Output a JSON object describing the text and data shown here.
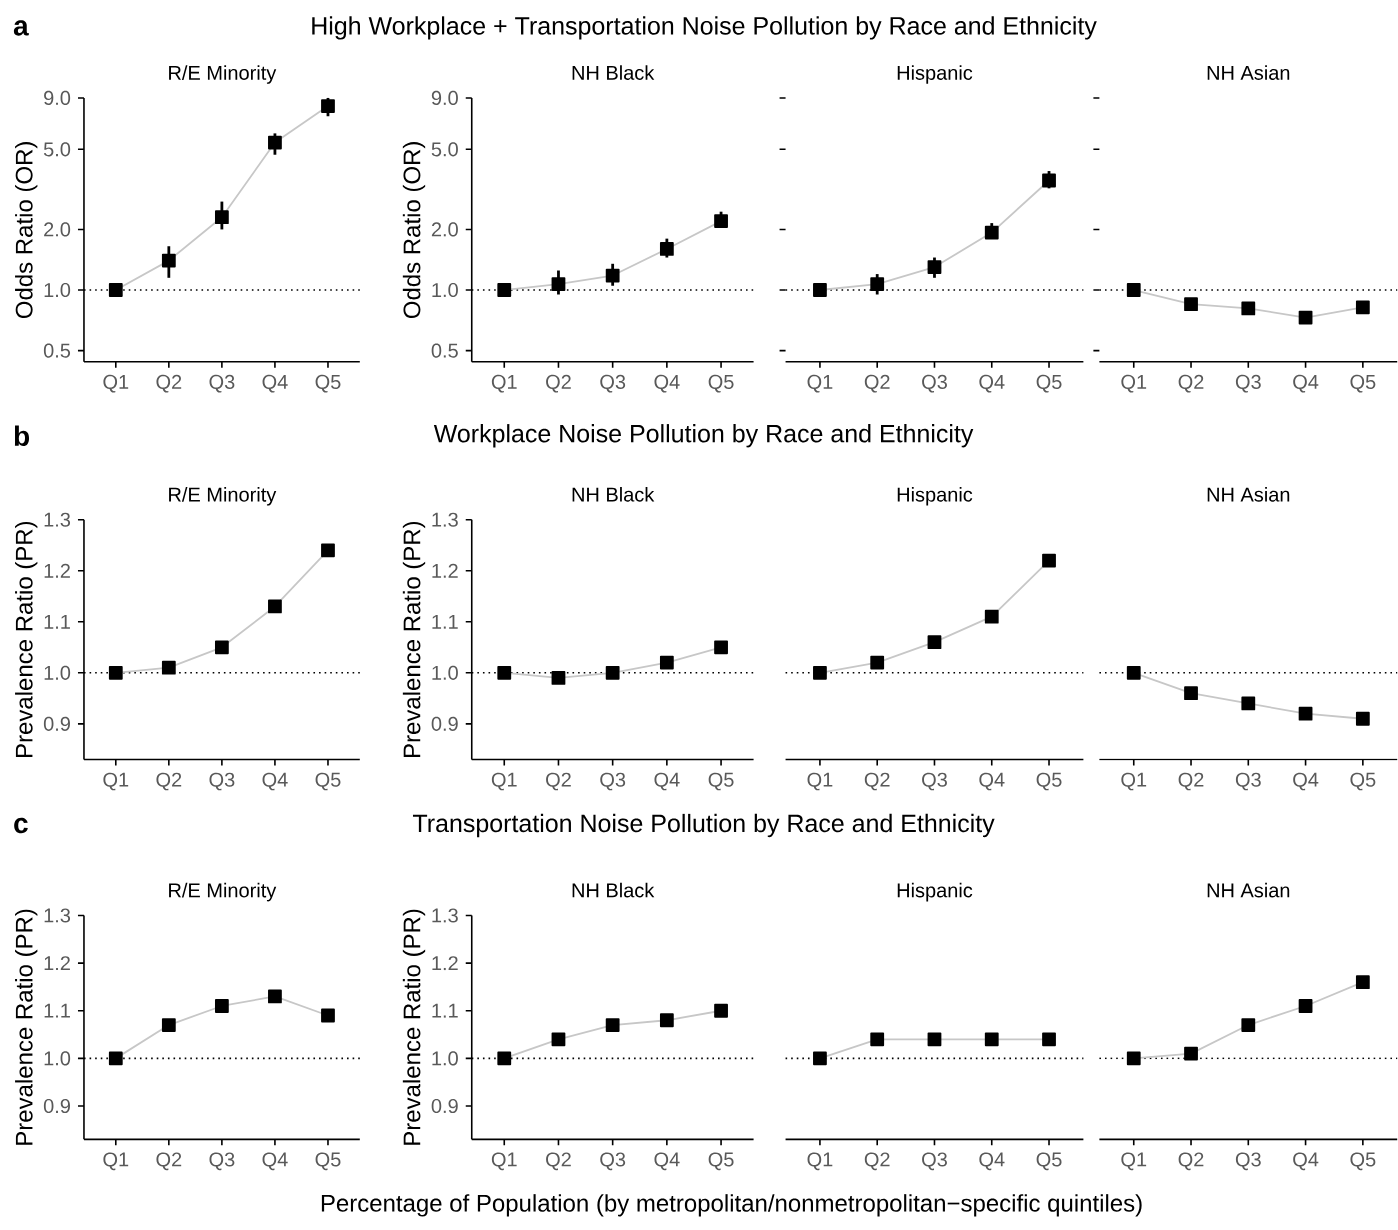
{
  "chart_data": [
    {
      "type": "line",
      "title": "R/E Minority",
      "ylabel": "Odds Ratio (OR)",
      "annotations": [
        "a",
        "High Workplace + Transportation Noise Pollution by Race and Ethnicity"
      ],
      "categories": [
        "Q1",
        "Q2",
        "Q3",
        "Q4",
        "Q5"
      ],
      "values": [
        1.0,
        1.4,
        2.3,
        5.4,
        8.2
      ],
      "errors": [
        null,
        [
          1.15,
          1.65
        ],
        [
          2.0,
          2.75
        ],
        [
          4.7,
          6.0
        ],
        [
          7.3,
          9.0
        ]
      ],
      "color": "#000000",
      "marker": "square",
      "line_style": "solid",
      "log": "y",
      "ylim": [
        0.44,
        9.0
      ],
      "yticks": [
        {
          "value": 0.5,
          "label": "0.5"
        },
        {
          "value": 1,
          "label": "1.0"
        },
        {
          "value": 2,
          "label": "2.0"
        },
        {
          "value": 5,
          "label": "5.0"
        },
        {
          "value": 9,
          "label": "9.0"
        }
      ],
      "ref_lines": [
        {
          "axis": "y",
          "value": 1,
          "line_style": "dotted"
        }
      ]
    },
    {
      "type": "line",
      "title": "NH Black",
      "ylabel": "Odds Ratio (OR)",
      "categories": [
        "Q1",
        "Q2",
        "Q3",
        "Q4",
        "Q5"
      ],
      "values": [
        1.0,
        1.07,
        1.18,
        1.6,
        2.2
      ],
      "errors": [
        null,
        [
          0.95,
          1.25
        ],
        [
          1.05,
          1.35
        ],
        [
          1.45,
          1.8
        ],
        [
          2.05,
          2.45
        ]
      ],
      "color": "#000000",
      "marker": "square",
      "line_style": "solid",
      "log": "y",
      "ylim": [
        0.44,
        9.0
      ],
      "yticks": [
        {
          "value": 0.5,
          "label": "0.5"
        },
        {
          "value": 1,
          "label": "1.0"
        },
        {
          "value": 2,
          "label": "2.0"
        },
        {
          "value": 5,
          "label": "5.0"
        },
        {
          "value": 9,
          "label": "9.0"
        }
      ],
      "ref_lines": [
        {
          "axis": "y",
          "value": 1,
          "line_style": "dotted"
        }
      ]
    },
    {
      "type": "line",
      "title": "Hispanic",
      "categories": [
        "Q1",
        "Q2",
        "Q3",
        "Q4",
        "Q5"
      ],
      "values": [
        1.0,
        1.07,
        1.3,
        1.93,
        3.5
      ],
      "errors": [
        null,
        [
          0.95,
          1.2
        ],
        [
          1.15,
          1.45
        ],
        [
          1.8,
          2.15
        ],
        [
          3.2,
          3.9
        ]
      ],
      "color": "#000000",
      "marker": "square",
      "line_style": "solid",
      "log": "y",
      "ylim": [
        0.44,
        9.0
      ],
      "yticks": [
        {
          "value": 0.5,
          "label": null
        },
        {
          "value": 1,
          "label": null
        },
        {
          "value": 2,
          "label": null
        },
        {
          "value": 5,
          "label": null
        },
        {
          "value": 9,
          "label": null
        }
      ],
      "tick_labels": "x",
      "ref_lines": [
        {
          "axis": "y",
          "value": 1,
          "line_style": "dotted"
        }
      ]
    },
    {
      "type": "line",
      "title": "NH Asian",
      "categories": [
        "Q1",
        "Q2",
        "Q3",
        "Q4",
        "Q5"
      ],
      "values": [
        1.0,
        0.85,
        0.81,
        0.73,
        0.82
      ],
      "errors": [
        null,
        [
          0.81,
          0.89
        ],
        [
          0.77,
          0.86
        ],
        [
          0.69,
          0.78
        ],
        [
          0.78,
          0.87
        ]
      ],
      "color": "#000000",
      "marker": "square",
      "line_style": "solid",
      "log": "y",
      "ylim": [
        0.44,
        9.0
      ],
      "yticks": [
        {
          "value": 0.5,
          "label": null
        },
        {
          "value": 1,
          "label": null
        },
        {
          "value": 2,
          "label": null
        },
        {
          "value": 5,
          "label": null
        },
        {
          "value": 9,
          "label": null
        }
      ],
      "tick_labels": "x",
      "ref_lines": [
        {
          "axis": "y",
          "value": 1,
          "line_style": "dotted"
        }
      ]
    },
    {
      "type": "line",
      "title": "R/E Minority",
      "ylabel": "Prevalence Ratio (PR)",
      "annotations": [
        "b",
        "Workplace Noise Pollution by Race and Ethnicity"
      ],
      "categories": [
        "Q1",
        "Q2",
        "Q3",
        "Q4",
        "Q5"
      ],
      "values": [
        1.0,
        1.01,
        1.05,
        1.13,
        1.24
      ],
      "color": "#000000",
      "marker": "square",
      "line_style": "solid",
      "ylim": [
        0.83,
        1.3
      ],
      "yticks": [
        {
          "value": 0.9,
          "label": "0.9"
        },
        {
          "value": 1.0,
          "label": "1.0"
        },
        {
          "value": 1.1,
          "label": "1.1"
        },
        {
          "value": 1.2,
          "label": "1.2"
        },
        {
          "value": 1.3,
          "label": "1.3"
        }
      ],
      "ref_lines": [
        {
          "axis": "y",
          "value": 1,
          "line_style": "dotted"
        }
      ]
    },
    {
      "type": "line",
      "title": "NH Black",
      "ylabel": "Prevalence Ratio (PR)",
      "categories": [
        "Q1",
        "Q2",
        "Q3",
        "Q4",
        "Q5"
      ],
      "values": [
        1.0,
        0.99,
        1.0,
        1.02,
        1.05
      ],
      "color": "#000000",
      "marker": "square",
      "line_style": "solid",
      "ylim": [
        0.83,
        1.3
      ],
      "yticks": [
        {
          "value": 0.9,
          "label": "0.9"
        },
        {
          "value": 1.0,
          "label": "1.0"
        },
        {
          "value": 1.1,
          "label": "1.1"
        },
        {
          "value": 1.2,
          "label": "1.2"
        },
        {
          "value": 1.3,
          "label": "1.3"
        }
      ],
      "ref_lines": [
        {
          "axis": "y",
          "value": 1,
          "line_style": "dotted"
        }
      ]
    },
    {
      "type": "line",
      "title": "Hispanic",
      "categories": [
        "Q1",
        "Q2",
        "Q3",
        "Q4",
        "Q5"
      ],
      "values": [
        1.0,
        1.02,
        1.06,
        1.11,
        1.22
      ],
      "color": "#000000",
      "marker": "square",
      "line_style": "solid",
      "ylim": [
        0.83,
        1.3
      ],
      "tick_labels": "x",
      "ref_lines": [
        {
          "axis": "y",
          "value": 1,
          "line_style": "dotted"
        }
      ]
    },
    {
      "type": "line",
      "title": "NH Asian",
      "categories": [
        "Q1",
        "Q2",
        "Q3",
        "Q4",
        "Q5"
      ],
      "values": [
        1.0,
        0.96,
        0.94,
        0.92,
        0.91
      ],
      "color": "#000000",
      "marker": "square",
      "line_style": "solid",
      "ylim": [
        0.83,
        1.3
      ],
      "tick_labels": "x",
      "ref_lines": [
        {
          "axis": "y",
          "value": 1,
          "line_style": "dotted"
        }
      ]
    },
    {
      "type": "line",
      "title": "R/E Minority",
      "ylabel": "Prevalence Ratio (PR)",
      "annotations": [
        "c",
        "Transportation Noise Pollution by Race and Ethnicity"
      ],
      "categories": [
        "Q1",
        "Q2",
        "Q3",
        "Q4",
        "Q5"
      ],
      "values": [
        1.0,
        1.07,
        1.11,
        1.13,
        1.09
      ],
      "color": "#000000",
      "marker": "square",
      "line_style": "solid",
      "ylim": [
        0.83,
        1.3
      ],
      "yticks": [
        {
          "value": 0.9,
          "label": "0.9"
        },
        {
          "value": 1.0,
          "label": "1.0"
        },
        {
          "value": 1.1,
          "label": "1.1"
        },
        {
          "value": 1.2,
          "label": "1.2"
        },
        {
          "value": 1.3,
          "label": "1.3"
        }
      ],
      "ref_lines": [
        {
          "axis": "y",
          "value": 1,
          "line_style": "dotted"
        }
      ]
    },
    {
      "type": "line",
      "title": "NH Black",
      "ylabel": "Prevalence Ratio (PR)",
      "categories": [
        "Q1",
        "Q2",
        "Q3",
        "Q4",
        "Q5"
      ],
      "values": [
        1.0,
        1.04,
        1.07,
        1.08,
        1.1
      ],
      "color": "#000000",
      "marker": "square",
      "line_style": "solid",
      "ylim": [
        0.83,
        1.3
      ],
      "yticks": [
        {
          "value": 0.9,
          "label": "0.9"
        },
        {
          "value": 1.0,
          "label": "1.0"
        },
        {
          "value": 1.1,
          "label": "1.1"
        },
        {
          "value": 1.2,
          "label": "1.2"
        },
        {
          "value": 1.3,
          "label": "1.3"
        }
      ],
      "ref_lines": [
        {
          "axis": "y",
          "value": 1,
          "line_style": "dotted"
        }
      ]
    },
    {
      "type": "line",
      "title": "Hispanic",
      "categories": [
        "Q1",
        "Q2",
        "Q3",
        "Q4",
        "Q5"
      ],
      "values": [
        1.0,
        1.04,
        1.04,
        1.04,
        1.04
      ],
      "color": "#000000",
      "marker": "square",
      "line_style": "solid",
      "ylim": [
        0.83,
        1.3
      ],
      "tick_labels": "x",
      "ref_lines": [
        {
          "axis": "y",
          "value": 1,
          "line_style": "dotted"
        }
      ]
    },
    {
      "type": "line",
      "title": "NH Asian",
      "xlabel": "Percentage of Population (by metropolitan/nonmetropolitan−specific quintiles)",
      "categories": [
        "Q1",
        "Q2",
        "Q3",
        "Q4",
        "Q5"
      ],
      "values": [
        1.0,
        1.01,
        1.07,
        1.11,
        1.16
      ],
      "color": "#000000",
      "marker": "square",
      "line_style": "solid",
      "ylim": [
        0.83,
        1.3
      ],
      "tick_labels": "x",
      "ref_lines": [
        {
          "axis": "y",
          "value": 1,
          "line_style": "dotted"
        }
      ]
    }
  ]
}
